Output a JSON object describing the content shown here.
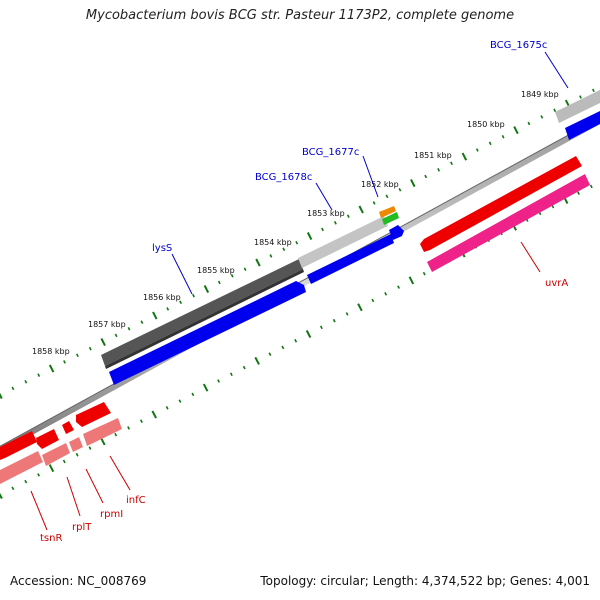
{
  "title": "Mycobacterium bovis BCG str. Pasteur 1173P2, complete genome",
  "footer": {
    "accession": "Accession: NC_008769",
    "topology": "Topology: circular; Length: 4,374,522 bp; Genes: 4,001"
  },
  "colors": {
    "forward_gene": "#0000ee",
    "forward_gene_dark": "#555555",
    "forward_gene_light": "#bbbbbb",
    "reverse_gene": "#ee0000",
    "reverse_gene_pink": "#ee2288",
    "reverse_gene_light": "#ee7777",
    "tick": "#117711",
    "forward_label": "#0000cc",
    "reverse_label": "#cc0000"
  },
  "scale_labels": [
    "1849 kbp",
    "1850 kbp",
    "1851 kbp",
    "1852 kbp",
    "1853 kbp",
    "1854 kbp",
    "1855 kbp",
    "1856 kbp",
    "1857 kbp",
    "1858 kbp"
  ],
  "forward_genes": [
    "BCG_1675c",
    "BCG_1677c",
    "BCG_1678c",
    "lysS"
  ],
  "reverse_genes": [
    "uvrA",
    "infC",
    "rpmI",
    "rplT",
    "tsnR"
  ]
}
